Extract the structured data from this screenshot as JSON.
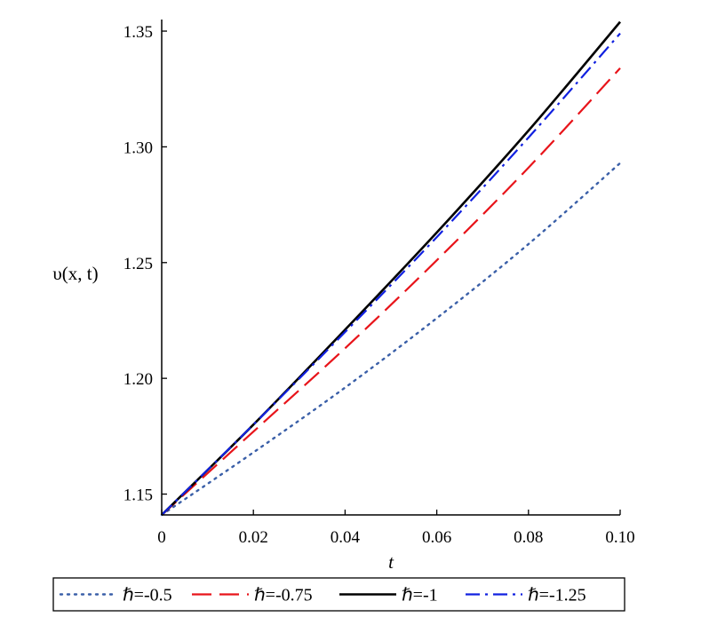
{
  "chart_data": {
    "type": "line",
    "title": "",
    "xlabel": "t",
    "ylabel": "υ(x, t)",
    "xlim": [
      0,
      0.1
    ],
    "ylim": [
      1.141,
      1.355
    ],
    "xticks": [
      0,
      0.02,
      0.04,
      0.06,
      0.08,
      0.1
    ],
    "xtick_labels": [
      "0",
      "0.02",
      "0.04",
      "0.06",
      "0.08",
      "0.10"
    ],
    "yticks": [
      1.15,
      1.2,
      1.25,
      1.3,
      1.35
    ],
    "ytick_labels": [
      "1.15",
      "1.20",
      "1.25",
      "1.30",
      "1.35"
    ],
    "grid": false,
    "legend_position": "bottom",
    "x": [
      0,
      0.02,
      0.04,
      0.06,
      0.08,
      0.1
    ],
    "series": [
      {
        "name": "ℏ=-0.5",
        "color": "#3a5fa8",
        "dash": "dotted",
        "values": [
          1.141,
          1.168,
          1.196,
          1.226,
          1.258,
          1.293
        ]
      },
      {
        "name": "ℏ=-0.75",
        "color": "#e8141a",
        "dash": "dashed",
        "values": [
          1.141,
          1.177,
          1.213,
          1.251,
          1.291,
          1.334
        ]
      },
      {
        "name": "ℏ=-1",
        "color": "#000000",
        "dash": "solid",
        "values": [
          1.141,
          1.18,
          1.221,
          1.263,
          1.307,
          1.354
        ]
      },
      {
        "name": "ℏ=-1.25",
        "color": "#1020e0",
        "dash": "dashdot",
        "values": [
          1.141,
          1.18,
          1.22,
          1.261,
          1.304,
          1.349
        ]
      }
    ]
  }
}
